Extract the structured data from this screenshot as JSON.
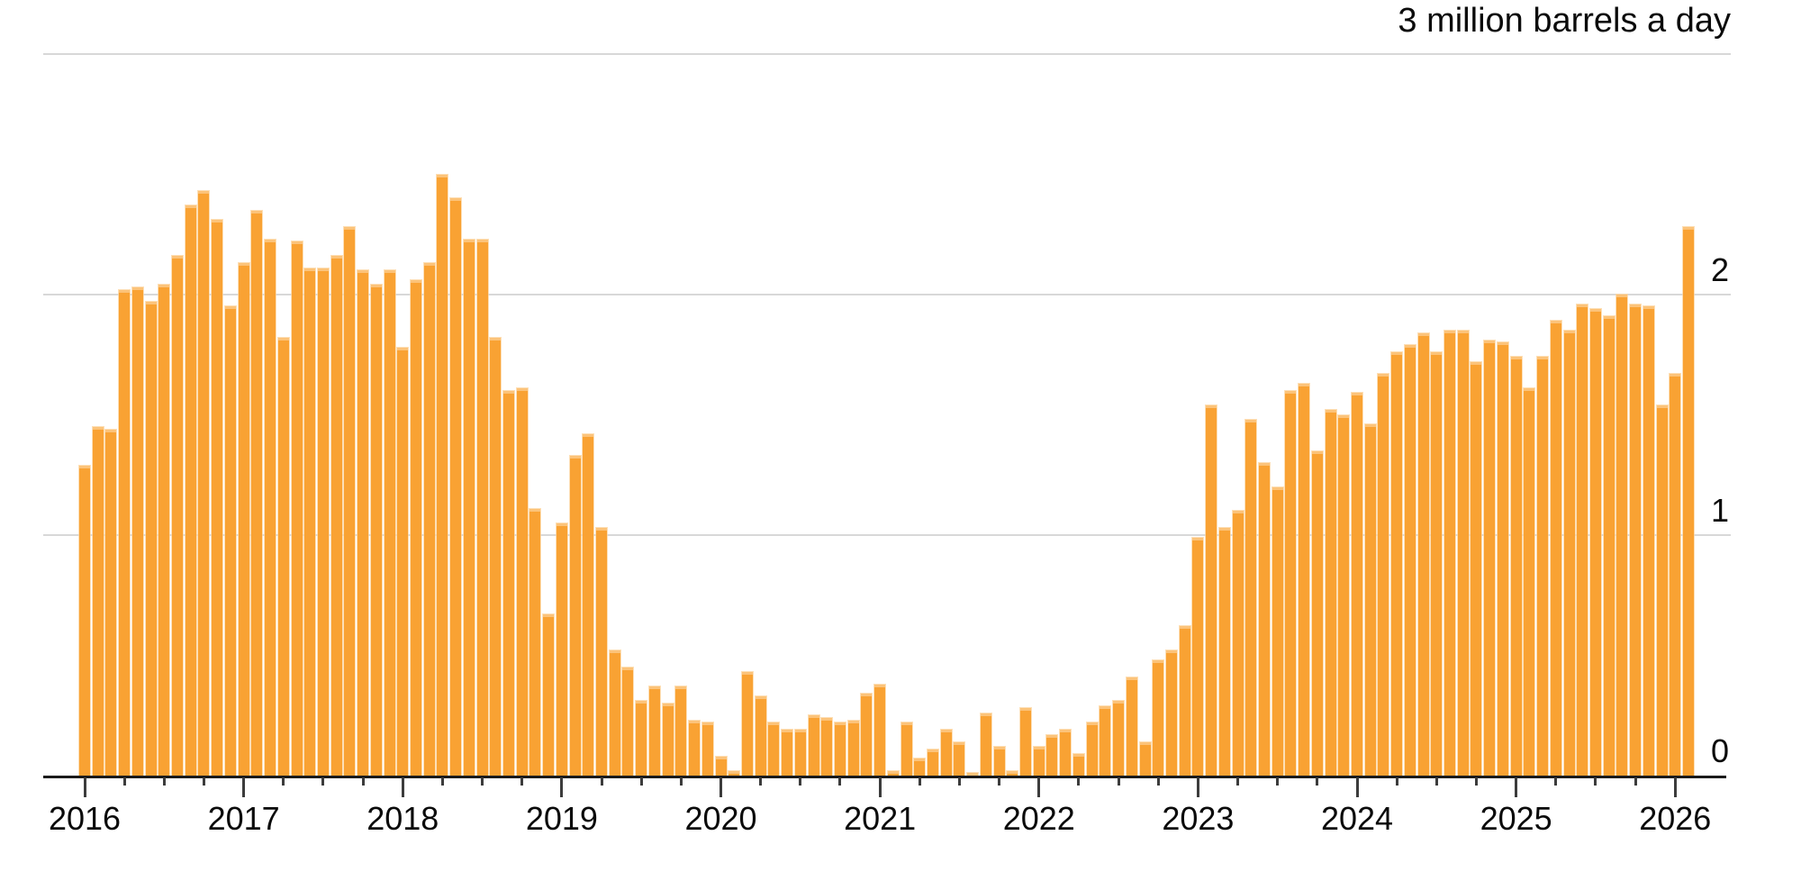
{
  "header": {
    "title": "3 million barrels a day"
  },
  "y_axis": {
    "tick_labels": [
      "0",
      "1",
      "2"
    ],
    "tick_values": [
      0,
      1,
      2
    ],
    "top_caption": "3 million barrels a day",
    "side": "right"
  },
  "x_axis": {
    "year_labels": [
      "2016",
      "2017",
      "2018",
      "2019",
      "2020",
      "2021",
      "2022",
      "2023",
      "2024",
      "2025",
      "2026"
    ]
  },
  "chart_data": {
    "type": "bar",
    "title": "3 million barrels a day",
    "unit": "million barrels a day",
    "frequency": "monthly",
    "start_month": "2016-01",
    "end_month": "2026-02",
    "ylim": [
      0,
      3
    ],
    "y_ticks": [
      0,
      1,
      2,
      3
    ],
    "grid": true,
    "legend_position": "none",
    "bar_color": "#f9a233",
    "bar_cap_color": "#fcc379",
    "gridline_color": "#d8d8d8",
    "baseline_color": "#1a1a1a",
    "text_color": "#0b0b0b",
    "categories": [
      "2016-01",
      "2016-02",
      "2016-03",
      "2016-04",
      "2016-05",
      "2016-06",
      "2016-07",
      "2016-08",
      "2016-09",
      "2016-10",
      "2016-11",
      "2016-12",
      "2017-01",
      "2017-02",
      "2017-03",
      "2017-04",
      "2017-05",
      "2017-06",
      "2017-07",
      "2017-08",
      "2017-09",
      "2017-10",
      "2017-11",
      "2017-12",
      "2018-01",
      "2018-02",
      "2018-03",
      "2018-04",
      "2018-05",
      "2018-06",
      "2018-07",
      "2018-08",
      "2018-09",
      "2018-10",
      "2018-11",
      "2018-12",
      "2019-01",
      "2019-02",
      "2019-03",
      "2019-04",
      "2019-05",
      "2019-06",
      "2019-07",
      "2019-08",
      "2019-09",
      "2019-10",
      "2019-11",
      "2019-12",
      "2020-01",
      "2020-02",
      "2020-03",
      "2020-04",
      "2020-05",
      "2020-06",
      "2020-07",
      "2020-08",
      "2020-09",
      "2020-10",
      "2020-11",
      "2020-12",
      "2021-01",
      "2021-02",
      "2021-03",
      "2021-04",
      "2021-05",
      "2021-06",
      "2021-07",
      "2021-08",
      "2021-09",
      "2021-10",
      "2021-11",
      "2021-12",
      "2022-01",
      "2022-02",
      "2022-03",
      "2022-04",
      "2022-05",
      "2022-06",
      "2022-07",
      "2022-08",
      "2022-09",
      "2022-10",
      "2022-11",
      "2022-12",
      "2023-01",
      "2023-02",
      "2023-03",
      "2023-04",
      "2023-05",
      "2023-06",
      "2023-07",
      "2023-08",
      "2023-09",
      "2023-10",
      "2023-11",
      "2023-12",
      "2024-01",
      "2024-02",
      "2024-03",
      "2024-04",
      "2024-05",
      "2024-06",
      "2024-07",
      "2024-08",
      "2024-09",
      "2024-10",
      "2024-11",
      "2024-12",
      "2025-01",
      "2025-02",
      "2025-03",
      "2025-04",
      "2025-05",
      "2025-06",
      "2025-07",
      "2025-08",
      "2025-09",
      "2025-10",
      "2025-11",
      "2025-12",
      "2026-01",
      "2026-02"
    ],
    "values": [
      1.29,
      1.45,
      1.44,
      2.02,
      2.03,
      1.97,
      2.04,
      2.16,
      2.37,
      2.43,
      2.31,
      1.95,
      2.13,
      2.35,
      2.23,
      1.82,
      2.22,
      2.11,
      2.11,
      2.16,
      2.28,
      2.1,
      2.04,
      2.1,
      1.78,
      2.06,
      2.13,
      2.5,
      2.4,
      2.23,
      2.23,
      1.82,
      1.6,
      1.61,
      1.11,
      0.67,
      1.05,
      1.33,
      1.42,
      1.03,
      0.52,
      0.45,
      0.31,
      0.37,
      0.3,
      0.37,
      0.23,
      0.22,
      0.08,
      0.02,
      0.43,
      0.33,
      0.22,
      0.19,
      0.19,
      0.25,
      0.24,
      0.22,
      0.23,
      0.34,
      0.38,
      0.02,
      0.22,
      0.07,
      0.11,
      0.19,
      0.14,
      0.01,
      0.26,
      0.12,
      0.02,
      0.28,
      0.12,
      0.17,
      0.19,
      0.09,
      0.22,
      0.29,
      0.31,
      0.41,
      0.14,
      0.48,
      0.52,
      0.62,
      0.99,
      1.54,
      1.03,
      1.1,
      1.48,
      1.3,
      1.2,
      1.6,
      1.63,
      1.35,
      1.52,
      1.5,
      1.59,
      1.46,
      1.67,
      1.76,
      1.79,
      1.84,
      1.76,
      1.85,
      1.85,
      1.72,
      1.81,
      1.8,
      1.74,
      1.61,
      1.74,
      1.89,
      1.85,
      1.96,
      1.94,
      1.91,
      2.0,
      1.96,
      1.95,
      1.54,
      1.67,
      2.28
    ]
  }
}
